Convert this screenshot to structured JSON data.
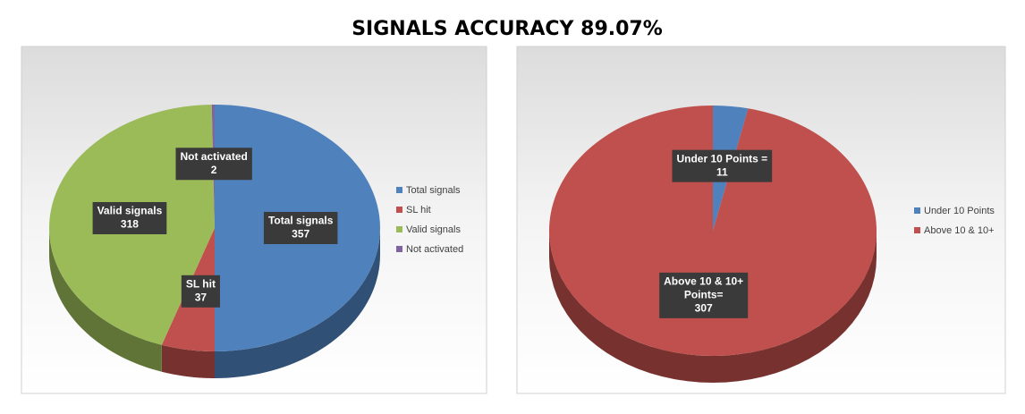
{
  "title": "SIGNALS  ACCURACY 89.07%",
  "chart_data": [
    {
      "type": "pie",
      "categories": [
        "Total signals",
        "SL hit",
        "Valid signals",
        "Not activated"
      ],
      "values": [
        357,
        37,
        318,
        2
      ],
      "colors": [
        "#4f81bd",
        "#c0504d",
        "#9bbb59",
        "#8064a2"
      ],
      "legend": "right"
    },
    {
      "type": "pie",
      "categories": [
        "Under 10 Points",
        "Above 10 & 10+"
      ],
      "values": [
        11,
        307
      ],
      "data_labels": [
        [
          "Under 10 Points ="
        ],
        [
          "Above 10 & 10+",
          "Points="
        ]
      ],
      "colors": [
        "#4f81bd",
        "#c0504d"
      ],
      "legend": "right"
    }
  ]
}
